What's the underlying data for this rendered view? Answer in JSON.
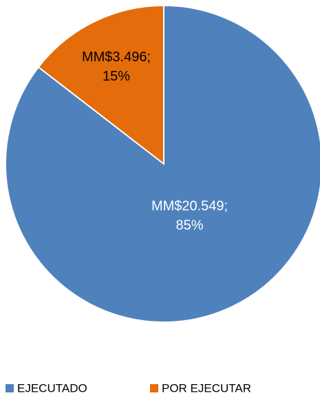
{
  "chart_data": {
    "type": "pie",
    "categories": [
      "EJECUTADO",
      "POR EJECUTAR"
    ],
    "values": [
      20549,
      3496
    ],
    "value_labels": [
      "MM$20.549;",
      "MM$3.496;"
    ],
    "percent_labels": [
      "85%",
      "15%"
    ],
    "colors": [
      "#4f81bd",
      "#e46c0a"
    ],
    "legend": "bottom"
  }
}
